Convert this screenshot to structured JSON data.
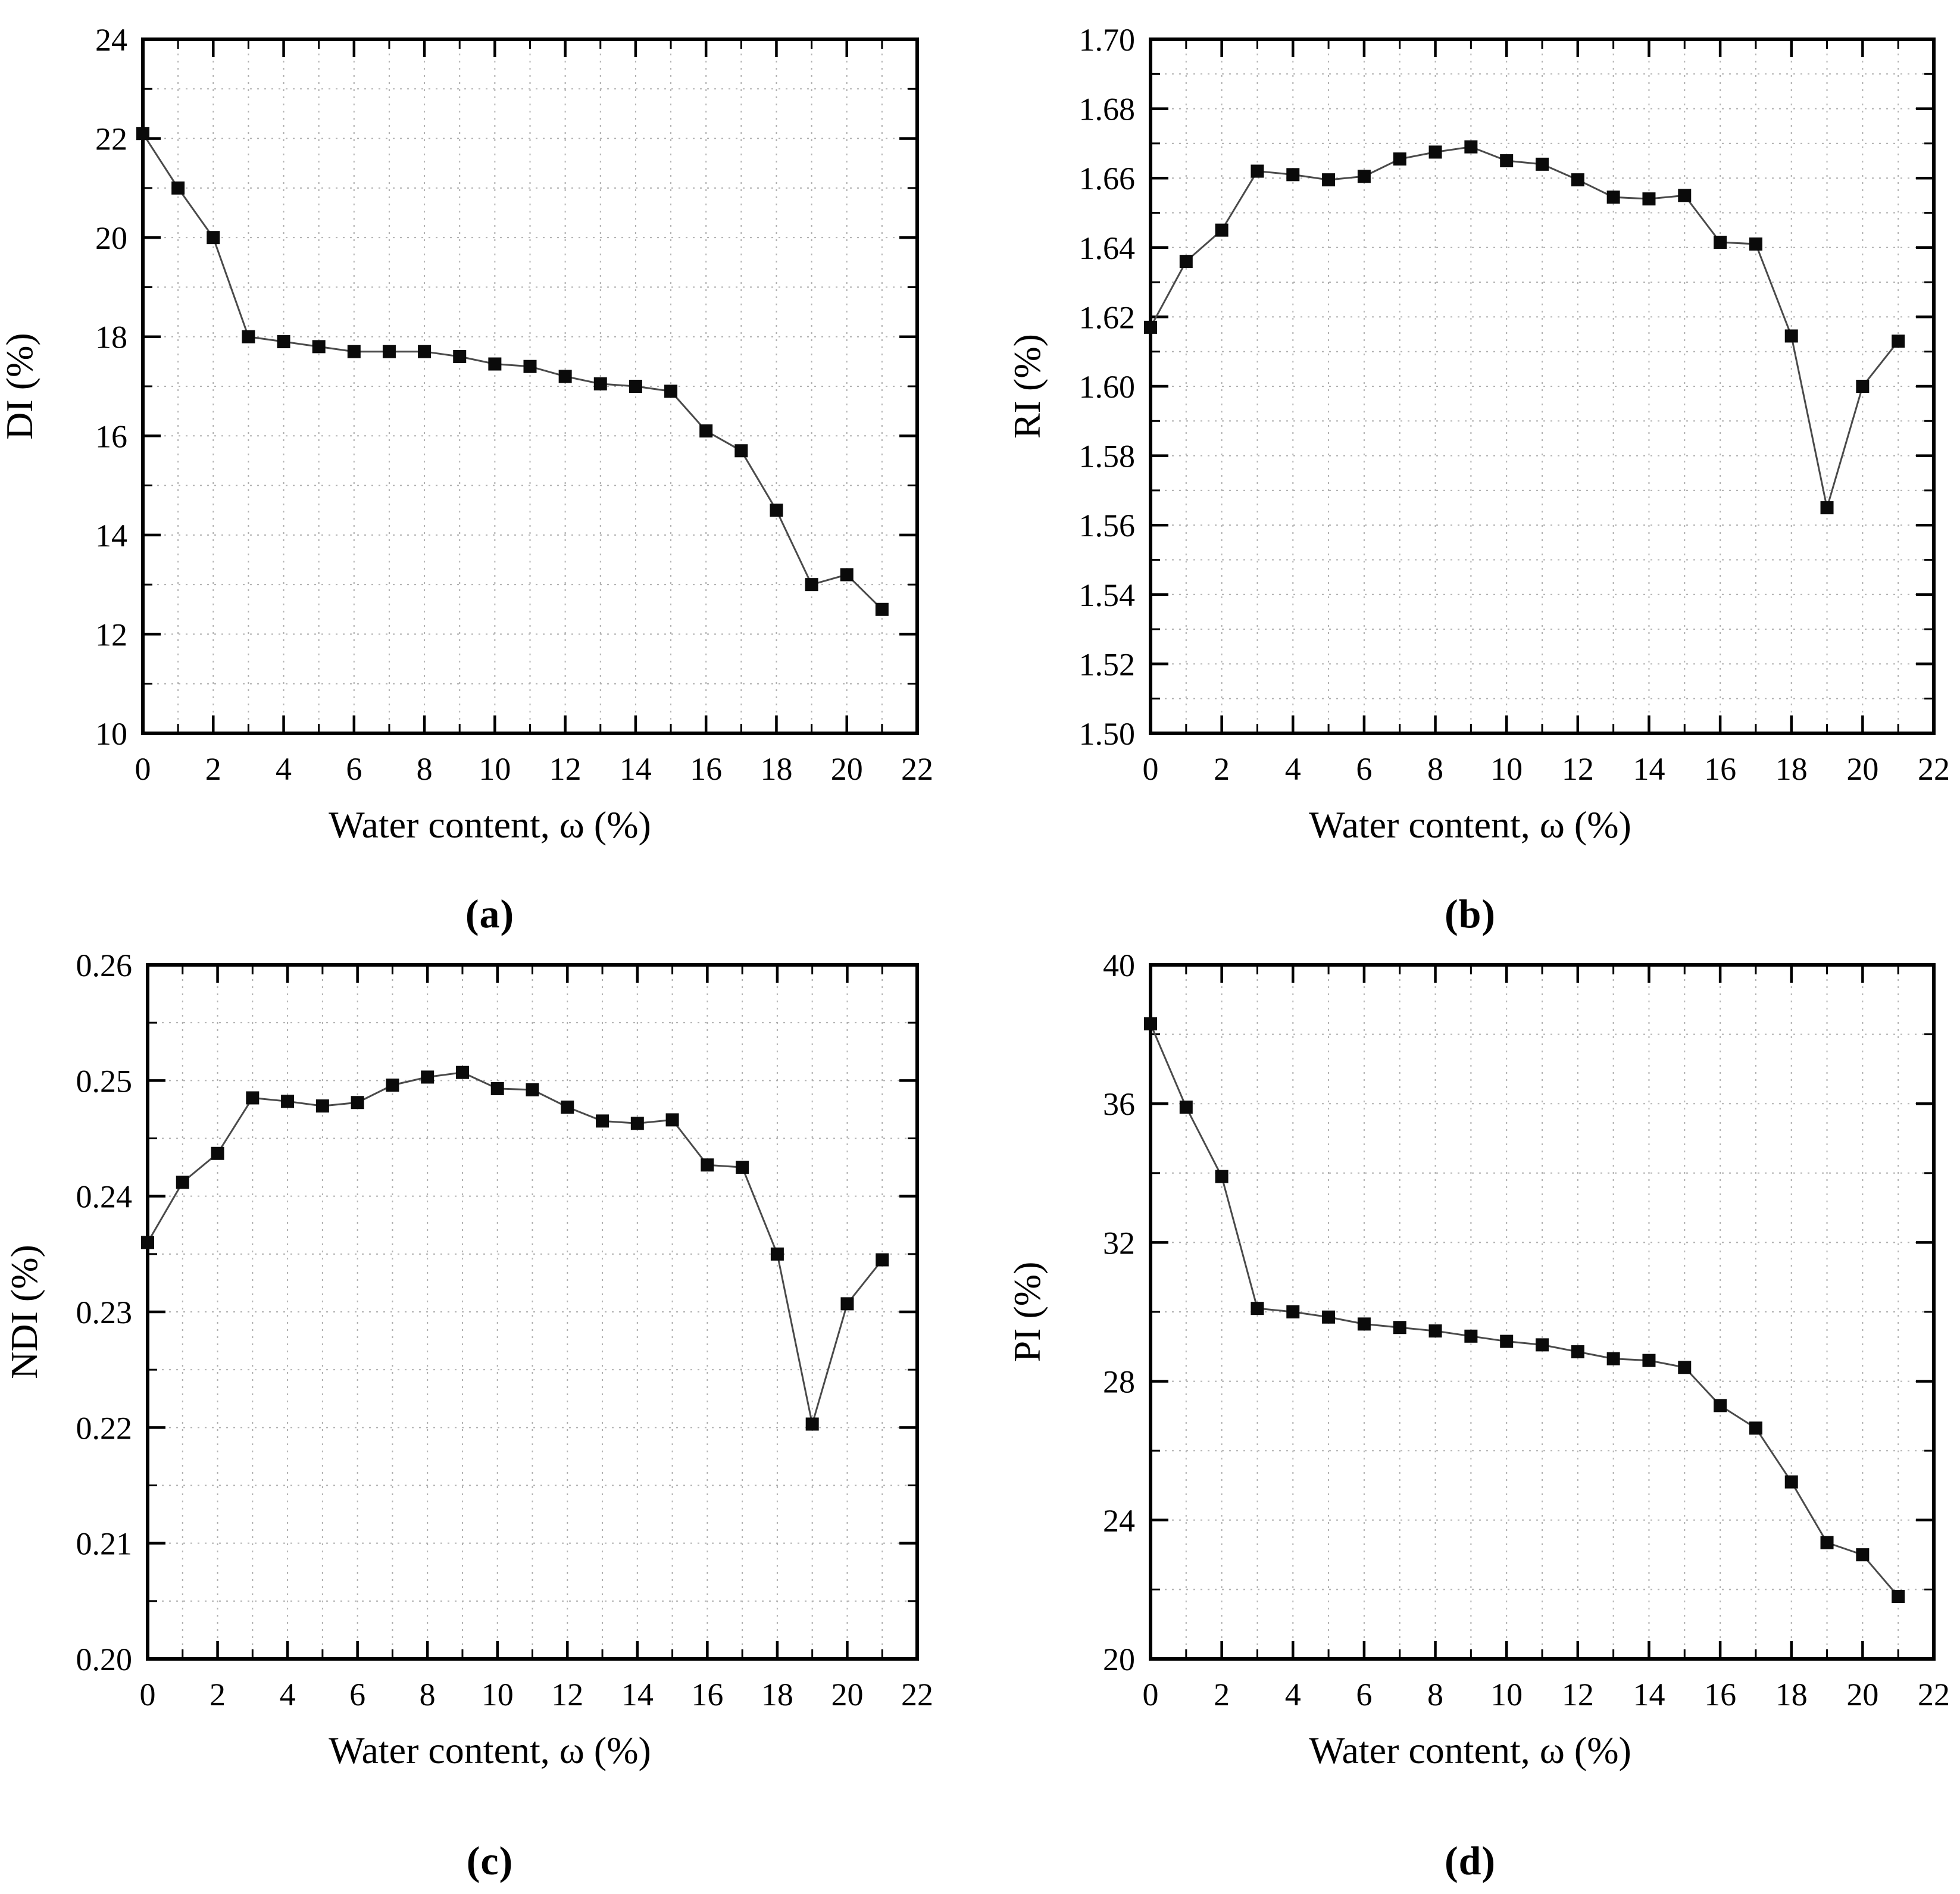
{
  "figure": {
    "background": "#ffffff",
    "panels": [
      "a",
      "b",
      "c",
      "d"
    ]
  },
  "style": {
    "axis_color": "#000000",
    "grid_color": "#b0b0b0",
    "line_color": "#4a4a4a",
    "marker_color": "#0a0a0a",
    "text_color": "#000000"
  },
  "chart_data": [
    {
      "type": "line",
      "panel_label": "(a)",
      "xlabel": "Water content, ω (%)",
      "ylabel": "DI (%)",
      "x": [
        0,
        1,
        2,
        3,
        4,
        5,
        6,
        7,
        8,
        9,
        10,
        11,
        12,
        13,
        14,
        15,
        16,
        17,
        18,
        19,
        20,
        21
      ],
      "values": [
        22.1,
        21.0,
        20.0,
        18.0,
        17.9,
        17.8,
        17.7,
        17.7,
        17.7,
        17.6,
        17.45,
        17.4,
        17.2,
        17.05,
        17.0,
        16.9,
        16.1,
        15.7,
        14.5,
        13.0,
        13.2,
        12.5
      ],
      "xlim": [
        0,
        22
      ],
      "ylim": [
        10,
        24
      ],
      "xticks": [
        0,
        2,
        4,
        6,
        8,
        10,
        12,
        14,
        16,
        18,
        20,
        22
      ],
      "xtick_labels": [
        "0",
        "2",
        "4",
        "6",
        "8",
        "10",
        "12",
        "14",
        "16",
        "18",
        "20",
        "22"
      ],
      "yticks": [
        10,
        12,
        14,
        16,
        18,
        20,
        22,
        24
      ],
      "ytick_labels": [
        "10",
        "12",
        "14",
        "16",
        "18",
        "20",
        "22",
        "24"
      ],
      "x_minor_step": 1,
      "y_minor_step": 1,
      "marker": "square",
      "grid": true,
      "legend": "none"
    },
    {
      "type": "line",
      "panel_label": "(b)",
      "xlabel": "Water content, ω (%)",
      "ylabel": "RI (%)",
      "x": [
        0,
        1,
        2,
        3,
        4,
        5,
        6,
        7,
        8,
        9,
        10,
        11,
        12,
        13,
        14,
        15,
        16,
        17,
        18,
        19,
        20,
        21
      ],
      "values": [
        1.617,
        1.636,
        1.645,
        1.662,
        1.661,
        1.6595,
        1.6605,
        1.6655,
        1.6675,
        1.669,
        1.665,
        1.664,
        1.6595,
        1.6545,
        1.654,
        1.655,
        1.6415,
        1.641,
        1.6145,
        1.565,
        1.6,
        1.613
      ],
      "xlim": [
        0,
        22
      ],
      "ylim": [
        1.5,
        1.7
      ],
      "xticks": [
        0,
        2,
        4,
        6,
        8,
        10,
        12,
        14,
        16,
        18,
        20,
        22
      ],
      "xtick_labels": [
        "0",
        "2",
        "4",
        "6",
        "8",
        "10",
        "12",
        "14",
        "16",
        "18",
        "20",
        "22"
      ],
      "yticks": [
        1.5,
        1.52,
        1.54,
        1.56,
        1.58,
        1.6,
        1.62,
        1.64,
        1.66,
        1.68,
        1.7
      ],
      "ytick_labels": [
        "1.50",
        "1.52",
        "1.54",
        "1.56",
        "1.58",
        "1.60",
        "1.62",
        "1.64",
        "1.66",
        "1.68",
        "1.70"
      ],
      "x_minor_step": 1,
      "y_minor_step": 0.01,
      "marker": "square",
      "grid": true,
      "legend": "none"
    },
    {
      "type": "line",
      "panel_label": "(c)",
      "xlabel": "Water content, ω (%)",
      "ylabel": "NDI (%)",
      "x": [
        0,
        1,
        2,
        3,
        4,
        5,
        6,
        7,
        8,
        9,
        10,
        11,
        12,
        13,
        14,
        15,
        16,
        17,
        18,
        19,
        20,
        21
      ],
      "values": [
        0.236,
        0.2412,
        0.2437,
        0.2485,
        0.2482,
        0.2478,
        0.2481,
        0.2496,
        0.2503,
        0.2507,
        0.2493,
        0.2492,
        0.2477,
        0.2465,
        0.2463,
        0.2466,
        0.2427,
        0.2425,
        0.235,
        0.2203,
        0.2307,
        0.2345
      ],
      "xlim": [
        0,
        22
      ],
      "ylim": [
        0.2,
        0.26
      ],
      "xticks": [
        0,
        2,
        4,
        6,
        8,
        10,
        12,
        14,
        16,
        18,
        20,
        22
      ],
      "xtick_labels": [
        "0",
        "2",
        "4",
        "6",
        "8",
        "10",
        "12",
        "14",
        "16",
        "18",
        "20",
        "22"
      ],
      "yticks": [
        0.2,
        0.21,
        0.22,
        0.23,
        0.24,
        0.25,
        0.26
      ],
      "ytick_labels": [
        "0.20",
        "0.21",
        "0.22",
        "0.23",
        "0.24",
        "0.25",
        "0.26"
      ],
      "x_minor_step": 1,
      "y_minor_step": 0.005,
      "marker": "square",
      "grid": true,
      "legend": "none"
    },
    {
      "type": "line",
      "panel_label": "(d)",
      "xlabel": "Water content, ω (%)",
      "ylabel": "PI (%)",
      "x": [
        0,
        1,
        2,
        3,
        4,
        5,
        6,
        7,
        8,
        9,
        10,
        11,
        12,
        13,
        14,
        15,
        16,
        17,
        18,
        19,
        20,
        21
      ],
      "values": [
        38.3,
        35.9,
        33.9,
        30.1,
        30.0,
        29.85,
        29.65,
        29.55,
        29.45,
        29.3,
        29.15,
        29.05,
        28.85,
        28.65,
        28.6,
        28.4,
        27.3,
        26.65,
        25.1,
        23.35,
        23.0,
        21.8
      ],
      "xlim": [
        0,
        22
      ],
      "ylim": [
        20,
        40
      ],
      "xticks": [
        0,
        2,
        4,
        6,
        8,
        10,
        12,
        14,
        16,
        18,
        20,
        22
      ],
      "xtick_labels": [
        "0",
        "2",
        "4",
        "6",
        "8",
        "10",
        "12",
        "14",
        "16",
        "18",
        "20",
        "22"
      ],
      "yticks": [
        20,
        24,
        28,
        32,
        36,
        40
      ],
      "ytick_labels": [
        "20",
        "24",
        "28",
        "32",
        "36",
        "40"
      ],
      "x_minor_step": 1,
      "y_minor_step": 2,
      "marker": "square",
      "grid": true,
      "legend": "none"
    }
  ]
}
